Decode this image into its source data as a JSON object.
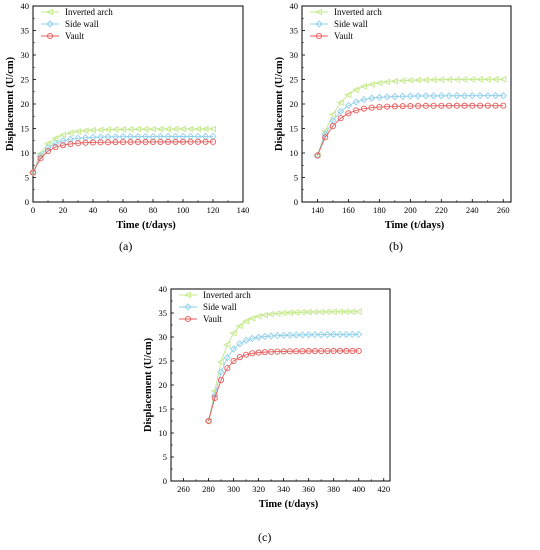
{
  "panels": [
    "(a)",
    "(b)",
    "(c)"
  ],
  "chart_data": [
    {
      "type": "line",
      "panel": "(a)",
      "xlabel": "Time (t/days)",
      "ylabel": "Displacement (U/cm)",
      "xlim": [
        0,
        140
      ],
      "ylim": [
        0,
        40
      ],
      "xticks": [
        0,
        20,
        40,
        60,
        80,
        100,
        120,
        140
      ],
      "yticks": [
        0,
        5,
        10,
        15,
        20,
        25,
        30,
        35,
        40
      ],
      "grid": false,
      "legend": "top-left",
      "x": [
        0,
        5,
        10,
        15,
        20,
        25,
        30,
        35,
        40,
        45,
        50,
        55,
        60,
        65,
        70,
        75,
        80,
        85,
        90,
        95,
        100,
        105,
        110,
        115,
        120
      ],
      "series": [
        {
          "name": "Inverted arch",
          "marker": "triangle-left",
          "color": "#c4e88a",
          "values": [
            6.0,
            9.9,
            11.9,
            13.0,
            13.7,
            14.1,
            14.4,
            14.55,
            14.65,
            14.72,
            14.77,
            14.8,
            14.82,
            14.84,
            14.85,
            14.86,
            14.87,
            14.88,
            14.88,
            14.89,
            14.89,
            14.9,
            14.9,
            14.9,
            14.9
          ]
        },
        {
          "name": "Side wall",
          "marker": "diamond",
          "color": "#8fd0ee",
          "values": [
            6.0,
            9.4,
            11.1,
            12.0,
            12.5,
            12.8,
            13.0,
            13.1,
            13.2,
            13.25,
            13.28,
            13.3,
            13.32,
            13.33,
            13.34,
            13.35,
            13.35,
            13.36,
            13.36,
            13.37,
            13.37,
            13.37,
            13.38,
            13.38,
            13.38
          ]
        },
        {
          "name": "Vault",
          "marker": "circle",
          "color": "#e85a5a",
          "values": [
            6.0,
            8.9,
            10.4,
            11.2,
            11.6,
            11.85,
            12.0,
            12.1,
            12.15,
            12.18,
            12.2,
            12.22,
            12.23,
            12.24,
            12.25,
            12.25,
            12.26,
            12.26,
            12.27,
            12.27,
            12.27,
            12.28,
            12.28,
            12.28,
            12.28
          ]
        }
      ]
    },
    {
      "type": "line",
      "panel": "(b)",
      "xlabel": "Time (t/days)",
      "ylabel": "Displacement (U/cm)",
      "xlim": [
        130,
        265
      ],
      "ylim": [
        0,
        40
      ],
      "xticks": [
        140,
        160,
        180,
        200,
        220,
        240,
        260
      ],
      "yticks": [
        0,
        5,
        10,
        15,
        20,
        25,
        30,
        35,
        40
      ],
      "grid": false,
      "legend": "top-left",
      "x": [
        140,
        145,
        150,
        155,
        160,
        165,
        170,
        175,
        180,
        185,
        190,
        195,
        200,
        205,
        210,
        215,
        220,
        225,
        230,
        235,
        240,
        245,
        250,
        255,
        260
      ],
      "series": [
        {
          "name": "Inverted arch",
          "marker": "triangle-left",
          "color": "#c4e88a",
          "values": [
            9.5,
            14.5,
            17.9,
            20.3,
            21.9,
            22.9,
            23.6,
            24.0,
            24.3,
            24.5,
            24.65,
            24.75,
            24.83,
            24.88,
            24.92,
            24.95,
            24.97,
            24.99,
            25.0,
            25.01,
            25.02,
            25.03,
            25.03,
            25.04,
            25.04
          ]
        },
        {
          "name": "Side wall",
          "marker": "diamond",
          "color": "#8fd0ee",
          "values": [
            9.5,
            13.8,
            16.6,
            18.5,
            19.7,
            20.4,
            20.9,
            21.2,
            21.35,
            21.45,
            21.52,
            21.57,
            21.6,
            21.63,
            21.65,
            21.66,
            21.67,
            21.68,
            21.69,
            21.69,
            21.7,
            21.7,
            21.7,
            21.71,
            21.71
          ]
        },
        {
          "name": "Vault",
          "marker": "circle",
          "color": "#e85a5a",
          "values": [
            9.5,
            13.2,
            15.5,
            17.1,
            18.1,
            18.7,
            19.05,
            19.25,
            19.38,
            19.46,
            19.52,
            19.56,
            19.58,
            19.6,
            19.62,
            19.63,
            19.64,
            19.64,
            19.65,
            19.65,
            19.65,
            19.66,
            19.66,
            19.66,
            19.66
          ]
        }
      ]
    },
    {
      "type": "line",
      "panel": "(c)",
      "xlabel": "Time (t/days)",
      "ylabel": "Displacement (U/cm)",
      "xlim": [
        250,
        425
      ],
      "ylim": [
        0,
        40
      ],
      "xticks": [
        260,
        280,
        300,
        320,
        340,
        360,
        380,
        400,
        420
      ],
      "yticks": [
        0,
        5,
        10,
        15,
        20,
        25,
        30,
        35,
        40
      ],
      "grid": false,
      "legend": "top-left",
      "x": [
        280,
        285,
        290,
        295,
        300,
        305,
        310,
        315,
        320,
        325,
        330,
        335,
        340,
        345,
        350,
        355,
        360,
        365,
        370,
        375,
        380,
        385,
        390,
        395,
        400
      ],
      "series": [
        {
          "name": "Inverted arch",
          "marker": "triangle-left",
          "color": "#c4e88a",
          "values": [
            12.5,
            18.8,
            24.8,
            28.4,
            30.8,
            32.3,
            33.3,
            33.9,
            34.3,
            34.55,
            34.75,
            34.9,
            35.0,
            35.07,
            35.12,
            35.16,
            35.19,
            35.21,
            35.23,
            35.24,
            35.25,
            35.26,
            35.27,
            35.27,
            35.28
          ]
        },
        {
          "name": "Side wall",
          "marker": "diamond",
          "color": "#8fd0ee",
          "values": [
            12.5,
            17.9,
            22.7,
            25.7,
            27.5,
            28.6,
            29.3,
            29.7,
            29.95,
            30.1,
            30.2,
            30.28,
            30.34,
            30.38,
            30.42,
            30.45,
            30.47,
            30.49,
            30.5,
            30.51,
            30.52,
            30.53,
            30.53,
            30.54,
            30.54
          ]
        },
        {
          "name": "Vault",
          "marker": "circle",
          "color": "#e85a5a",
          "values": [
            12.5,
            17.3,
            21.0,
            23.5,
            25.0,
            25.8,
            26.3,
            26.6,
            26.75,
            26.85,
            26.92,
            26.97,
            27.0,
            27.02,
            27.04,
            27.05,
            27.06,
            27.07,
            27.08,
            27.08,
            27.09,
            27.09,
            27.09,
            27.1,
            27.1
          ]
        }
      ]
    }
  ]
}
